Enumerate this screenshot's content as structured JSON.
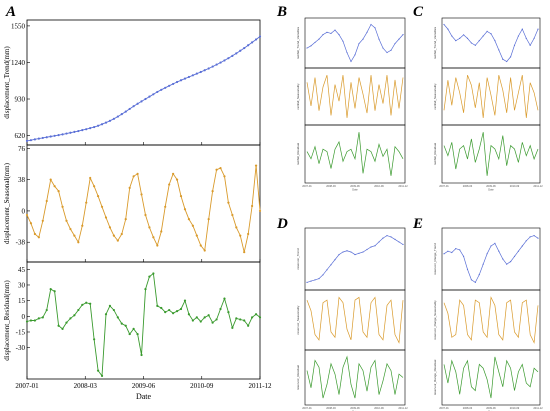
{
  "colors": {
    "trend": "#5a6fd6",
    "seasonal": "#d99a2b",
    "residual": "#3a9a2e",
    "axis": "#000000"
  },
  "panel_labels": [
    "A",
    "B",
    "C",
    "D",
    "E"
  ],
  "chart_data": [
    {
      "panel": "A",
      "type": "line",
      "xlabel": "Date",
      "x_ticks": [
        "2007-01",
        "2008-03",
        "2009-06",
        "2010-09",
        "2011-12"
      ],
      "n_points": 60,
      "subplots": [
        {
          "name": "trend",
          "ylabel": "displacement_Trend(mm)",
          "yticks": [
            "1550",
            "1240",
            "930",
            "620"
          ],
          "ylim": [
            540,
            1600
          ],
          "values": [
            575,
            581,
            588,
            594,
            600,
            606,
            612,
            618,
            624,
            630,
            637,
            644,
            651,
            658,
            666,
            674,
            683,
            692,
            703,
            716,
            730,
            745,
            762,
            781,
            802,
            823,
            846,
            869,
            890,
            910,
            930,
            950,
            970,
            990,
            1008,
            1025,
            1042,
            1058,
            1074,
            1089,
            1103,
            1117,
            1131,
            1145,
            1159,
            1174,
            1189,
            1205,
            1222,
            1239,
            1257,
            1276,
            1296,
            1317,
            1339,
            1362,
            1386,
            1410,
            1435,
            1460
          ]
        },
        {
          "name": "seasonal",
          "ylabel": "displacement_Seasonal(mm)",
          "yticks": [
            "76",
            "38",
            "0",
            "-38"
          ],
          "ylim": [
            -62,
            80
          ],
          "values": [
            -5,
            -15,
            -28,
            -32,
            -12,
            12,
            38,
            30,
            24,
            5,
            -12,
            -22,
            -30,
            -38,
            -18,
            10,
            40,
            30,
            18,
            5,
            -8,
            -20,
            -30,
            -36,
            -28,
            -10,
            28,
            42,
            45,
            20,
            -5,
            -20,
            -32,
            -42,
            -25,
            5,
            32,
            45,
            38,
            18,
            2,
            -10,
            -18,
            -30,
            -42,
            -48,
            -10,
            24,
            50,
            52,
            42,
            10,
            -5,
            -20,
            -30,
            -50,
            -28,
            6,
            55,
            0
          ]
        },
        {
          "name": "residual",
          "ylabel": "displacement_Residual(mm)",
          "yticks": [
            "45",
            "30",
            "15",
            "0",
            "-15",
            "-30"
          ],
          "ylim": [
            -60,
            52
          ],
          "values": [
            -5,
            -4,
            -4,
            -2,
            -1,
            6,
            26,
            24,
            -9,
            -12,
            -6,
            -2,
            1,
            6,
            11,
            13,
            12,
            -22,
            -52,
            -57,
            2,
            10,
            6,
            -1,
            -7,
            -9,
            -17,
            -12,
            -17,
            -37,
            26,
            38,
            41,
            10,
            8,
            4,
            6,
            3,
            5,
            7,
            15,
            2,
            -4,
            -1,
            -5,
            -1,
            1,
            -6,
            -3,
            7,
            17,
            4,
            -11,
            -2,
            -3,
            -4,
            -9,
            -1,
            2,
            -1
          ]
        }
      ]
    },
    {
      "panel": "B",
      "type": "line",
      "subplots": [
        {
          "name": "trend",
          "ylabel": "rainfall_Trend_Variables",
          "values": [
            -0.1,
            0.0,
            0.15,
            0.3,
            0.5,
            0.6,
            0.55,
            0.7,
            0.5,
            0.2,
            -0.3,
            -0.7,
            -0.4,
            0.1,
            0.3,
            0.6,
            0.95,
            0.8,
            0.3,
            -0.1,
            -0.3,
            -0.2,
            0.1,
            0.3,
            0.5
          ]
        },
        {
          "name": "seasonal",
          "ylabel": "rainfall_Seasonality",
          "values": [
            0.6,
            -0.4,
            0.8,
            -0.6,
            0.4,
            0.9,
            -0.8,
            0.5,
            -0.2,
            0.9,
            -0.9,
            0.6,
            -0.5,
            0.8,
            0.1,
            -0.7,
            0.9,
            -0.6,
            0.5,
            -0.3,
            0.9,
            -0.8,
            0.7,
            -0.5,
            0.8
          ]
        },
        {
          "name": "residual",
          "ylabel": "rainfall_Residual",
          "values": [
            0.1,
            -0.2,
            0.3,
            -0.4,
            0.2,
            0.1,
            -0.6,
            0.2,
            0.5,
            -0.3,
            0.1,
            0.2,
            -0.2,
            0.9,
            -0.8,
            0.2,
            0.1,
            -0.3,
            0.4,
            -0.1,
            0.2,
            -0.9,
            0.3,
            0.1,
            -0.2
          ]
        }
      ],
      "x_ticks": [
        "2007-01",
        "2008-03",
        "2009-06",
        "2010-09",
        "2011-12"
      ],
      "xlabel": "Date"
    },
    {
      "panel": "C",
      "type": "line",
      "subplots": [
        {
          "name": "trend",
          "ylabel": "rainfall_Trend_Variables",
          "values": [
            0.8,
            0.6,
            0.3,
            0.1,
            0.2,
            0.35,
            0.2,
            0.0,
            -0.1,
            0.1,
            0.3,
            0.5,
            0.4,
            0.1,
            -0.3,
            -0.7,
            -0.8,
            -0.6,
            -0.1,
            0.3,
            0.6,
            0.2,
            -0.1,
            0.2,
            0.6
          ]
        },
        {
          "name": "seasonal",
          "ylabel": "rainfall_Seasonality",
          "values": [
            -0.5,
            0.7,
            -0.3,
            0.8,
            0.2,
            -0.6,
            0.9,
            0.5,
            -0.4,
            0.6,
            -0.8,
            0.8,
            0.1,
            -0.7,
            0.9,
            0.3,
            -0.6,
            0.8,
            -0.5,
            0.2,
            0.9,
            -0.8,
            0.6,
            0.2,
            -0.5
          ]
        },
        {
          "name": "residual",
          "ylabel": "rainfall_Residual",
          "values": [
            0.2,
            -0.1,
            0.3,
            -0.5,
            0.1,
            0.2,
            -0.2,
            0.4,
            -0.3,
            0.1,
            0.6,
            -0.7,
            0.2,
            0.1,
            -0.2,
            0.5,
            -0.4,
            0.2,
            0.1,
            -0.3,
            0.3,
            -0.1,
            0.2,
            -0.2,
            0.1
          ]
        }
      ],
      "x_ticks": [
        "2007-01",
        "2008-03",
        "2009-06",
        "2010-09",
        "2011-12"
      ],
      "xlabel": "Date"
    },
    {
      "panel": "D",
      "type": "line",
      "subplots": [
        {
          "name": "trend",
          "ylabel": "reservoir_Trend",
          "values": [
            -0.9,
            -0.85,
            -0.8,
            -0.75,
            -0.6,
            -0.4,
            -0.2,
            0.0,
            0.2,
            0.3,
            0.35,
            0.3,
            0.2,
            0.25,
            0.3,
            0.4,
            0.5,
            0.55,
            0.7,
            0.85,
            0.95,
            0.9,
            0.8,
            0.7,
            0.6
          ]
        },
        {
          "name": "seasonal",
          "ylabel": "reservoir_Seasonality",
          "values": [
            0.7,
            0.3,
            -0.6,
            -0.8,
            0.6,
            0.7,
            -0.5,
            -0.7,
            0.8,
            0.6,
            -0.4,
            -0.8,
            0.7,
            0.8,
            -0.5,
            -0.7,
            0.6,
            0.8,
            -0.6,
            -0.8,
            0.5,
            0.7,
            -0.6,
            -0.9,
            0.7
          ]
        },
        {
          "name": "residual",
          "ylabel": "reservoir_Residual",
          "values": [
            0.2,
            -0.3,
            0.5,
            0.3,
            -0.6,
            -0.2,
            0.4,
            0.1,
            -0.5,
            0.3,
            0.6,
            -0.2,
            -0.6,
            0.4,
            0.2,
            -0.4,
            0.3,
            0.5,
            -0.5,
            -0.1,
            0.4,
            0.2,
            -0.5,
            0.1,
            0.0
          ]
        }
      ],
      "x_ticks": [
        "2007-01",
        "2008-03",
        "2009-06",
        "2010-09",
        "2011-12"
      ],
      "xlabel": "Date"
    },
    {
      "panel": "E",
      "type": "line",
      "subplots": [
        {
          "name": "trend",
          "ylabel": "reservoir_Range_Trend",
          "values": [
            0.2,
            0.3,
            0.25,
            0.4,
            0.35,
            0.1,
            -0.4,
            -0.8,
            -0.9,
            -0.6,
            -0.2,
            0.2,
            0.5,
            0.6,
            0.3,
            0.0,
            -0.2,
            -0.1,
            0.1,
            0.3,
            0.5,
            0.7,
            0.85,
            0.9,
            0.8
          ]
        },
        {
          "name": "seasonal",
          "ylabel": "reservoir_Range_Seasonality",
          "values": [
            0.6,
            0.2,
            -0.7,
            -0.6,
            0.7,
            0.5,
            -0.6,
            -0.8,
            0.7,
            0.6,
            -0.5,
            -0.7,
            0.8,
            0.5,
            -0.6,
            -0.8,
            0.6,
            0.7,
            -0.5,
            -0.7,
            0.6,
            0.7,
            -0.6,
            -0.9,
            0.5
          ]
        },
        {
          "name": "residual",
          "ylabel": "reservoir_Range_Residual",
          "values": [
            0.3,
            -0.2,
            0.4,
            0.1,
            -0.5,
            0.2,
            0.4,
            -0.3,
            -0.4,
            0.3,
            0.2,
            -0.1,
            -0.6,
            0.5,
            0.1,
            -0.3,
            0.4,
            0.2,
            -0.4,
            0.1,
            0.3,
            -0.2,
            -0.3,
            0.2,
            0.1
          ]
        }
      ],
      "x_ticks": [
        "2007-01",
        "2008-03",
        "2009-06",
        "2010-09",
        "2011-12"
      ],
      "xlabel": "Date"
    }
  ]
}
